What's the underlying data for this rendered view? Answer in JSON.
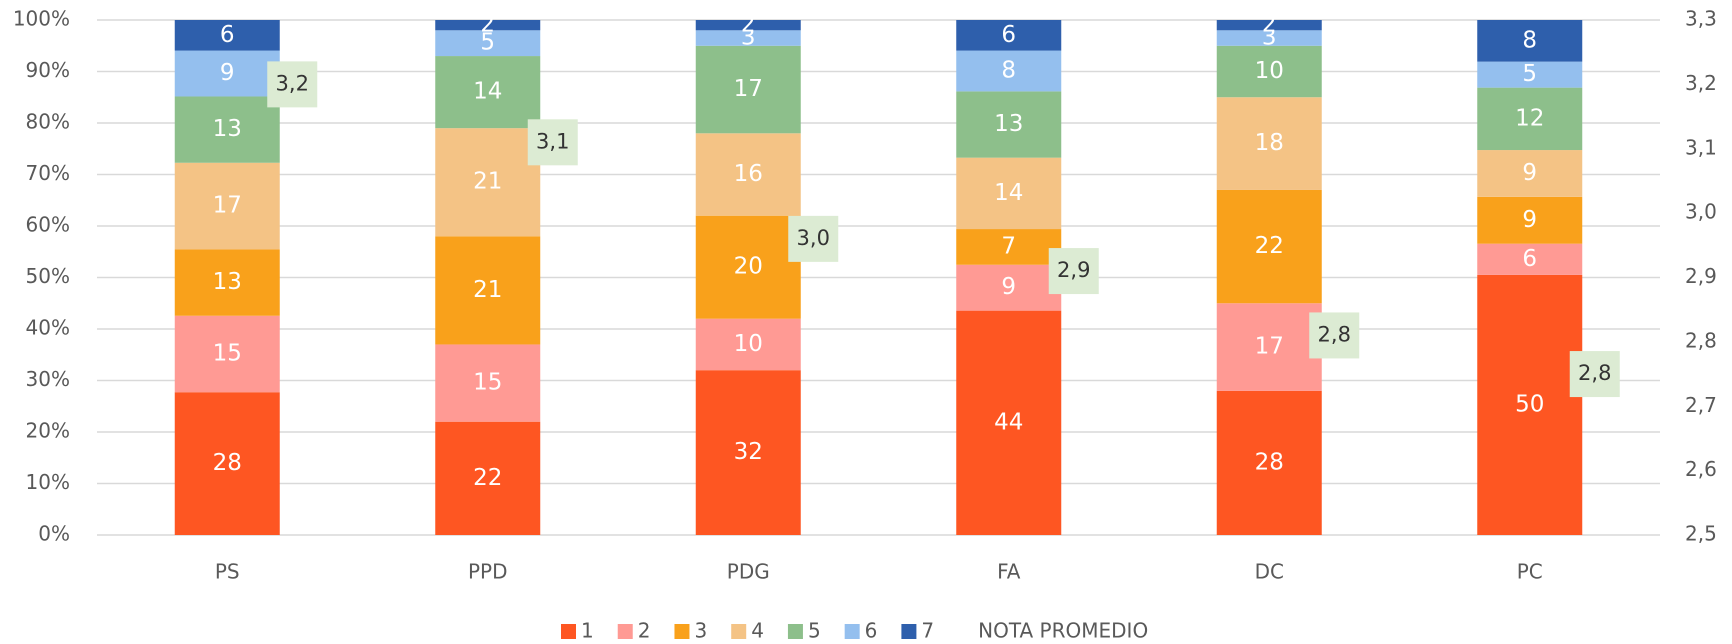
{
  "chart_data": {
    "type": "bar",
    "stacked": "percent",
    "categories": [
      "PS",
      "PPD",
      "PDG",
      "FA",
      "DC",
      "PC"
    ],
    "series": [
      {
        "name": "1",
        "color": "#fe5622",
        "values": [
          28,
          22,
          32,
          44,
          28,
          50
        ]
      },
      {
        "name": "2",
        "color": "#ff9a94",
        "values": [
          15,
          15,
          10,
          9,
          17,
          6
        ]
      },
      {
        "name": "3",
        "color": "#f9a11b",
        "values": [
          13,
          21,
          20,
          7,
          22,
          9
        ]
      },
      {
        "name": "4",
        "color": "#f4c385",
        "values": [
          17,
          21,
          16,
          14,
          18,
          9
        ]
      },
      {
        "name": "5",
        "color": "#8dbf8b",
        "values": [
          13,
          14,
          17,
          13,
          10,
          12
        ]
      },
      {
        "name": "6",
        "color": "#94bfee",
        "values": [
          9,
          5,
          3,
          8,
          3,
          5
        ]
      },
      {
        "name": "7",
        "color": "#2e5fac",
        "values": [
          6,
          2,
          2,
          6,
          2,
          8
        ]
      },
      {
        "name": "NOTA PROMEDIO",
        "axis": "y2",
        "color": "#dcebd3",
        "values": [
          3.2,
          3.11,
          2.96,
          2.91,
          2.81,
          2.75
        ],
        "value_labels": [
          "3,2",
          "3,1",
          "3,0",
          "2,9",
          "2,8",
          "2,8"
        ]
      }
    ],
    "ylim": [
      0,
      100
    ],
    "yticks": [
      {
        "value": 0,
        "label": "0%"
      },
      {
        "value": 10,
        "label": "10%"
      },
      {
        "value": 20,
        "label": "20%"
      },
      {
        "value": 30,
        "label": "30%"
      },
      {
        "value": 40,
        "label": "40%"
      },
      {
        "value": 50,
        "label": "50%"
      },
      {
        "value": 60,
        "label": "60%"
      },
      {
        "value": 70,
        "label": "70%"
      },
      {
        "value": 80,
        "label": "80%"
      },
      {
        "value": 90,
        "label": "90%"
      },
      {
        "value": 100,
        "label": "100%"
      }
    ],
    "y2lim": [
      2.5,
      3.3
    ],
    "y2ticks": [
      {
        "value": 2.5,
        "label": "2,5"
      },
      {
        "value": 2.6,
        "label": "2,6"
      },
      {
        "value": 2.7,
        "label": "2,7"
      },
      {
        "value": 2.8,
        "label": "2,8"
      },
      {
        "value": 2.9,
        "label": "2,9"
      },
      {
        "value": 3.0,
        "label": "3,0"
      },
      {
        "value": 3.1,
        "label": "3,1"
      },
      {
        "value": 3.2,
        "label": "3,2"
      },
      {
        "value": 3.3,
        "label": "3,3"
      }
    ],
    "grid": true,
    "legend": "bottom"
  }
}
